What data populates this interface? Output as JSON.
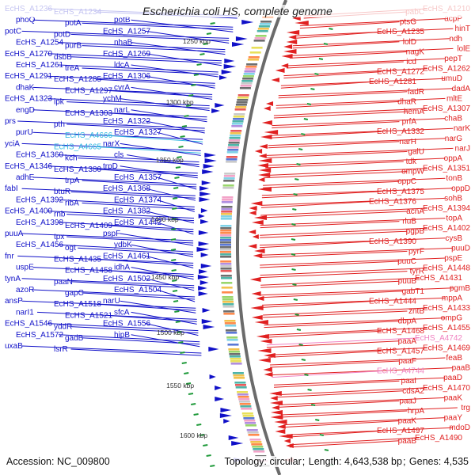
{
  "title": "Escherichia coli HS, complete genome",
  "accession": {
    "label": "Accession:",
    "value": "NC_009800"
  },
  "stats": {
    "topology_label": "Topology:",
    "topology": "circular",
    "length_label": "Length:",
    "length": "4,643,538 bp",
    "genes_label": "Genes:",
    "genes": "4,535"
  },
  "colors": {
    "forward_strand": "#1010c8",
    "reverse_strand": "#e02020",
    "highlight_left": "#30b8e0",
    "highlight_right": "#f080c0",
    "backbone": "#6b6b6b",
    "tick_green": "#1f9a3a"
  },
  "scale_ticks": [
    "1250 kbp",
    "1300 kbp",
    "1350 kbp",
    "1400 kbp",
    "1450 kbp",
    "1500 kbp",
    "1550 kbp",
    "1600 kbp"
  ],
  "left_labels": [
    "EcHS_A1236",
    "EcHS_A1234",
    "phoQ",
    "potA",
    "potB",
    "potC",
    "potD",
    "EcHS_A1257",
    "EcHS_A1254",
    "purB",
    "nhaB",
    "EcHS_A1270",
    "dsbB",
    "EcHS_A1269",
    "EcHS_A1261",
    "treA",
    "ldcA",
    "EcHS_A1291",
    "EcHS_A1285",
    "EcHS_A1306",
    "dhaK",
    "EcHS_A1297",
    "cvrA",
    "EcHS_A1323",
    "ipk",
    "ychM",
    "engD",
    "EcHS_A1303",
    "narL",
    "prs",
    "pth",
    "EcHS_A1322",
    "purU",
    "EcHS_A4666",
    "EcHS_A1327",
    "yciA",
    "EcHS_A4665",
    "narX",
    "EcHS_A1360",
    "kch",
    "cls",
    "EcHS_A1346",
    "EcHS_A1380",
    "trpD",
    "adhE",
    "trpA",
    "EcHS_A1357",
    "fabI",
    "btuR",
    "EcHS_A1368",
    "EcHS_A1392",
    "ribA",
    "EcHS_A1374",
    "EcHS_A1400",
    "rnb",
    "EcHS_A1382",
    "EcHS_A1398",
    "EcHS_A1409",
    "EcHS_A1442",
    "puuA",
    "tpx",
    "pspF",
    "EcHS_A1456",
    "ogt",
    "ydbK",
    "fnr",
    "EcHS_A1435",
    "EcHS_A1461",
    "uspE",
    "EcHS_A1458",
    "idhA",
    "tynA",
    "paaN",
    "EcHS_A1502",
    "azoR",
    "gapC",
    "EcHS_A1504",
    "ansP",
    "EcHS_A1518",
    "narU",
    "narI1",
    "EcHS_A1521",
    "sfcA",
    "EcHS_A1546",
    "yddR",
    "EcHS_A1556",
    "EcHS_A1572",
    "gadB",
    "hipB",
    "uxaB",
    "lsrR"
  ],
  "right_labels": [
    "EcHS_A1210",
    "pabC",
    "acpP",
    "ptsG",
    "hinT",
    "EcHS_A1235",
    "ndh",
    "lolD",
    "lolE",
    "nagK",
    "pepT",
    "icd",
    "EcHS_A1262",
    "EcHS_A1272",
    "umuD",
    "EcHS_A1281",
    "dadA",
    "fadR",
    "mltE",
    "dhaR",
    "EcHS_A1307",
    "hemA",
    "chaB",
    "prfA",
    "narK",
    "EcHS_A1332",
    "narG",
    "narH",
    "narJ",
    "galU",
    "oppA",
    "tdk",
    "EcHS_A1351",
    "ompW",
    "tonB",
    "oppC",
    "oppD",
    "EcHS_A1375",
    "sohB",
    "EcHS_A1376",
    "EcHS_A1394",
    "acnA",
    "topA",
    "rluB",
    "EcHS_A1402",
    "pgpB",
    "cysB",
    "EcHS_A1390",
    "puuD",
    "pyrF",
    "pspE",
    "puuC",
    "EcHS_A1448",
    "tyrR",
    "EcHS_A1431",
    "puuB",
    "pgmB",
    "gabT1",
    "mppA",
    "EcHS_A1444",
    "EcHS_A1433",
    "zntB",
    "ompG",
    "dbpA",
    "EcHS_A1455",
    "EcHS_A1468",
    "EcHS_A4742",
    "paaA",
    "EcHS_A1469",
    "EcHS_A1457",
    "feaB",
    "paaF",
    "paaB",
    "EcHS_A4744",
    "paaD",
    "paaI",
    "EcHS_A1470",
    "cdsA2",
    "paaK",
    "paaJ",
    "trg",
    "hrpA",
    "paaY",
    "paaK",
    "mdoD",
    "EcHS_A1497",
    "EcHS_A1490",
    "paaB"
  ]
}
